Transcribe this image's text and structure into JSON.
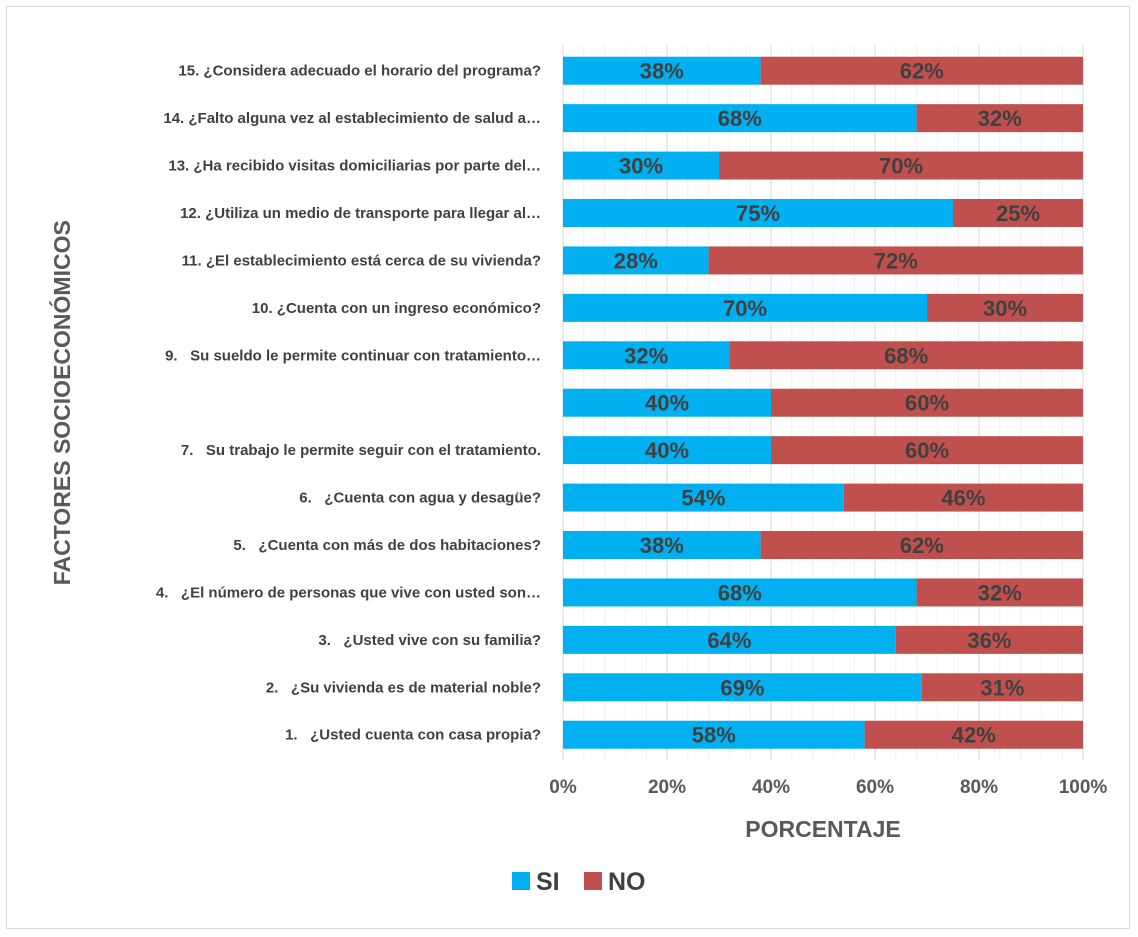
{
  "chart_data": {
    "type": "bar",
    "orientation": "horizontal",
    "stacked": true,
    "percent_stacked": true,
    "xlabel": "PORCENTAJE",
    "ylabel": "FACTORES SOCIOECONÓMICOS",
    "xlim": [
      0,
      100
    ],
    "xticks": [
      "0%",
      "20%",
      "40%",
      "60%",
      "80%",
      "100%"
    ],
    "grid": true,
    "legend_position": "bottom",
    "categories": [
      "15. ¿Considera adecuado el horario del programa?",
      "14. ¿Falto alguna vez al establecimiento de salud a…",
      "13. ¿Ha recibido visitas domiciliarias por parte del…",
      "12. ¿Utiliza un medio de transporte para llegar al…",
      "11. ¿El establecimiento está cerca de su vivienda?",
      "10. ¿Cuenta con un ingreso económico?",
      "9.   Su sueldo le permite continuar con tratamiento…",
      "",
      "7.   Su trabajo le permite seguir con el tratamiento.",
      "6.   ¿Cuenta con agua y desagüe?",
      "5.   ¿Cuenta con más de dos habitaciones?",
      "4.   ¿El número de personas que vive con usted son…",
      "3.   ¿Usted vive con su familia?",
      "2.   ¿Su vivienda es de material noble?",
      "1.   ¿Usted cuenta con casa propia?"
    ],
    "series": [
      {
        "name": "SI",
        "color": "#00b0f0",
        "values": [
          38,
          68,
          30,
          75,
          28,
          70,
          32,
          40,
          40,
          54,
          38,
          68,
          64,
          69,
          58
        ]
      },
      {
        "name": "NO",
        "color": "#c0504d",
        "values": [
          62,
          32,
          70,
          25,
          72,
          30,
          68,
          60,
          60,
          46,
          62,
          32,
          36,
          31,
          42
        ]
      }
    ]
  }
}
